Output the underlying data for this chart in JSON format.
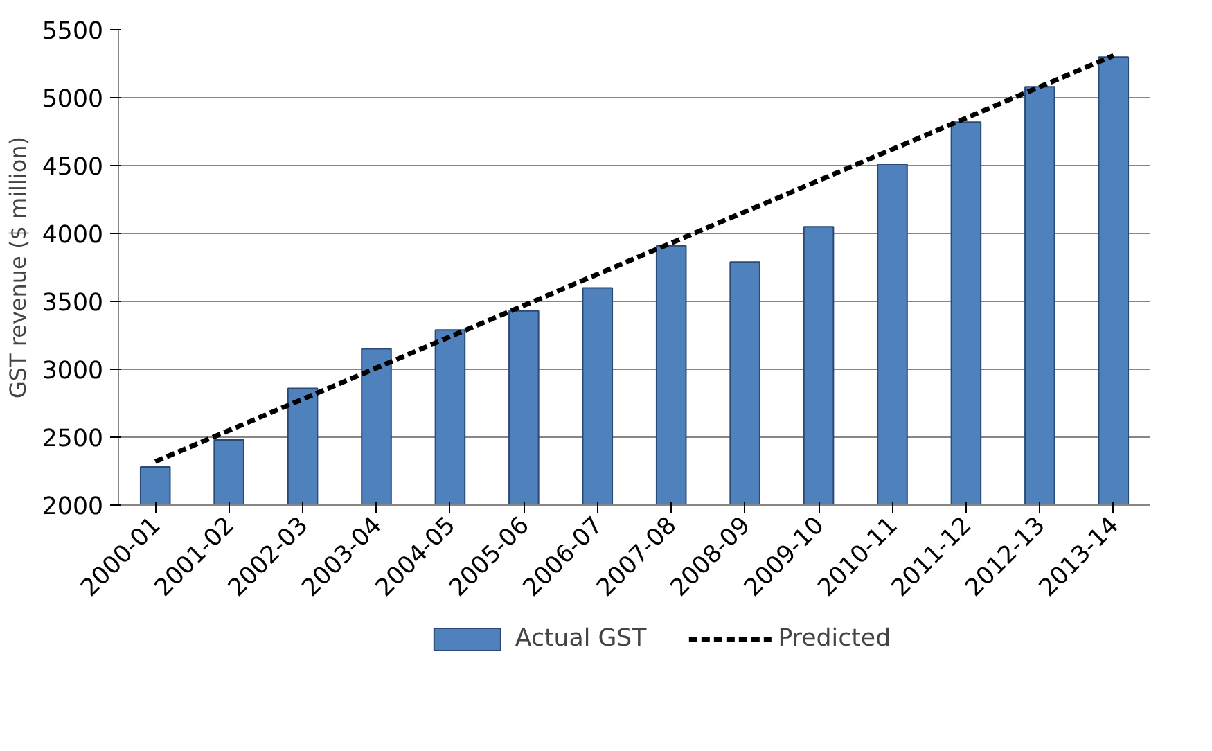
{
  "chart_data": {
    "type": "bar",
    "ylabel": "GST revenue ($ million)",
    "categories": [
      "2000-01",
      "2001-02",
      "2002-03",
      "2003-04",
      "2004-05",
      "2005-06",
      "2006-07",
      "2007-08",
      "2008-09",
      "2009-10",
      "2010-11",
      "2011-12",
      "2012-13",
      "2013-14"
    ],
    "series": [
      {
        "name": "Actual GST",
        "color": "#4f81bd",
        "values": [
          2280,
          2480,
          2860,
          3150,
          3290,
          3430,
          3600,
          3910,
          3790,
          4050,
          4510,
          4820,
          5080,
          5300
        ]
      },
      {
        "name": "Predicted",
        "type": "line",
        "color": "#000000",
        "line_style": "dashed",
        "values": [
          2320,
          2550,
          2780,
          3010,
          3240,
          3470,
          3700,
          3930,
          4160,
          4390,
          4620,
          4850,
          5080,
          5310
        ]
      }
    ],
    "ylim": [
      2000,
      5500
    ],
    "yticks": [
      2000,
      2500,
      3000,
      3500,
      4000,
      4500,
      5000,
      5500
    ],
    "grid": "y",
    "legend": "bottom"
  }
}
